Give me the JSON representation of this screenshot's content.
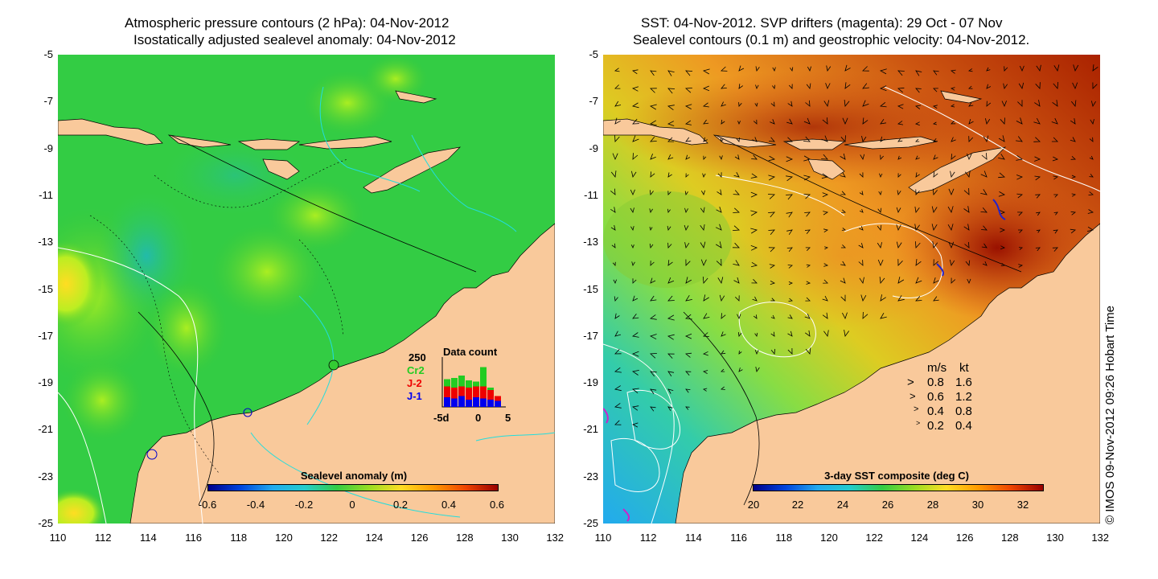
{
  "left_panel": {
    "title_line1": "Atmospheric pressure contours (2 hPa): 04-Nov-2012",
    "title_line2": "Isostatically adjusted sealevel anomaly: 04-Nov-2012",
    "colorbar": {
      "title": "Sealevel anomaly (m)",
      "ticks": [
        "-0.6",
        "-0.4",
        "-0.2",
        "0",
        "0.2",
        "0.4",
        "0.6"
      ],
      "range": [
        -0.6,
        0.6
      ]
    },
    "inset": {
      "title": "Data count",
      "ymax_label": "250",
      "series_labels": [
        "Cr2",
        "J-2",
        "J-1"
      ],
      "series_colors": [
        "#22cc22",
        "#ee0000",
        "#0000ee"
      ],
      "xticks": [
        "-5d",
        "0",
        "5"
      ],
      "bars": [
        {
          "j1": 40,
          "j2": 45,
          "cr2": 30
        },
        {
          "j1": 35,
          "j2": 45,
          "cr2": 40
        },
        {
          "j1": 45,
          "j2": 40,
          "cr2": 45
        },
        {
          "j1": 30,
          "j2": 50,
          "cr2": 30
        },
        {
          "j1": 40,
          "j2": 45,
          "cr2": 20
        },
        {
          "j1": 35,
          "j2": 50,
          "cr2": 80
        },
        {
          "j1": 30,
          "j2": 40,
          "cr2": 10
        },
        {
          "j1": 25,
          "j2": 20,
          "cr2": 0
        }
      ]
    }
  },
  "right_panel": {
    "title_line1": "SST: 04-Nov-2012. SVP drifters (magenta): 29 Oct - 07 Nov",
    "title_line2": "Sealevel contours (0.1 m) and geostrophic velocity: 04-Nov-2012.",
    "colorbar": {
      "title": "3-day SST composite (deg C)",
      "ticks": [
        "20",
        "22",
        "24",
        "26",
        "28",
        "30",
        "32"
      ],
      "range": [
        20,
        33
      ]
    },
    "velocity_legend": {
      "header_ms": "m/s",
      "header_kt": "kt",
      "rows": [
        {
          "ms": "0.8",
          "kt": "1.6"
        },
        {
          "ms": "0.6",
          "kt": "1.2"
        },
        {
          "ms": "0.4",
          "kt": "0.8"
        },
        {
          "ms": "0.2",
          "kt": "0.4"
        }
      ]
    }
  },
  "axes": {
    "lat_ticks": [
      "-5",
      "-7",
      "-9",
      "-11",
      "-13",
      "-15",
      "-17",
      "-19",
      "-21",
      "-23",
      "-25"
    ],
    "lon_ticks": [
      "110",
      "112",
      "114",
      "116",
      "118",
      "120",
      "122",
      "124",
      "126",
      "128",
      "130",
      "132"
    ]
  },
  "credit": "© IMOS 09-Nov-2012 09:26 Hobart Time",
  "colors": {
    "land": "#f9c99b",
    "sla_ocean": "#33cc33",
    "sst_warm": "#cc5500"
  }
}
